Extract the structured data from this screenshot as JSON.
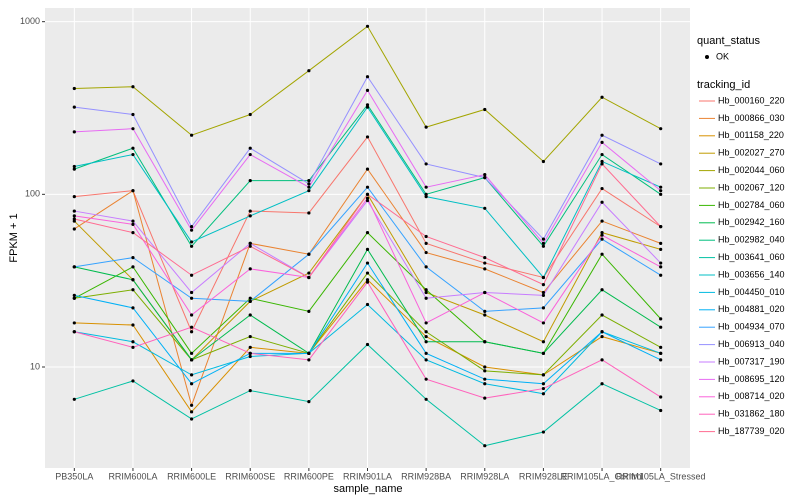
{
  "chart_data": {
    "type": "line",
    "x_label": "sample_name",
    "y_label": "FPKM + 1",
    "log_y": true,
    "grid": true,
    "legend_position": "right",
    "shape_legend": {
      "title": "quant_status",
      "labels": [
        "OK"
      ]
    },
    "legend_title": "tracking_id",
    "categories": [
      "PB350LA",
      "RRIM600LA",
      "RRIM600LE",
      "RRIM600SE",
      "RRIM600PE",
      "RRIM901LA",
      "RRIM928BA",
      "RRIM928LA",
      "RRIM928LE",
      "RRIM105LA_Control",
      "RRIM105LA_Stressed"
    ],
    "ylim": [
      2.6,
      1200
    ],
    "yticks": [
      10,
      100,
      1000
    ],
    "series": [
      {
        "name": "Hb_000160_220",
        "color": "#F8766D",
        "values": [
          97,
          105,
          16,
          80,
          78,
          215,
          52,
          40,
          33,
          108,
          65
        ]
      },
      {
        "name": "Hb_000866_030",
        "color": "#EA8331",
        "values": [
          63,
          105,
          6,
          52,
          45,
          140,
          46,
          37,
          27,
          70,
          52
        ]
      },
      {
        "name": "Hb_001158_220",
        "color": "#D89000",
        "values": [
          18,
          17.5,
          5.5,
          13,
          12,
          32,
          15,
          10,
          9,
          15,
          12
        ]
      },
      {
        "name": "Hb_002027_270",
        "color": "#C09B00",
        "values": [
          70,
          32,
          11,
          24,
          35,
          100,
          27,
          20,
          14,
          60,
          48
        ]
      },
      {
        "name": "Hb_002044_060",
        "color": "#A3A500",
        "values": [
          410,
          420,
          220,
          290,
          520,
          940,
          245,
          310,
          155,
          365,
          240
        ]
      },
      {
        "name": "Hb_002067_120",
        "color": "#7CAE00",
        "values": [
          25,
          28,
          11,
          15,
          12,
          35,
          16,
          9.5,
          9,
          20,
          13
        ]
      },
      {
        "name": "Hb_002784_060",
        "color": "#39B600",
        "values": [
          25,
          38,
          12,
          25,
          21,
          60,
          28,
          14,
          12,
          45,
          19
        ]
      },
      {
        "name": "Hb_002942_160",
        "color": "#00BB4E",
        "values": [
          38,
          32,
          11,
          20,
          12,
          48,
          14,
          14,
          12,
          28,
          17
        ]
      },
      {
        "name": "Hb_002982_040",
        "color": "#00BF7D",
        "values": [
          140,
          185,
          50,
          120,
          120,
          330,
          100,
          125,
          50,
          170,
          100
        ]
      },
      {
        "name": "Hb_003641_060",
        "color": "#00C1A3",
        "values": [
          6.5,
          8.3,
          5,
          7.3,
          6.3,
          13.5,
          6.5,
          3.5,
          4.2,
          8,
          5.6
        ]
      },
      {
        "name": "Hb_003656_140",
        "color": "#00BFC4",
        "values": [
          145,
          170,
          53,
          75,
          105,
          320,
          97,
          83,
          33,
          155,
          110
        ]
      },
      {
        "name": "Hb_004450_010",
        "color": "#00BAE0",
        "values": [
          16,
          14,
          9,
          11.5,
          12,
          23,
          11,
          8,
          7,
          16,
          12
        ]
      },
      {
        "name": "Hb_004881_020",
        "color": "#00B0F6",
        "values": [
          26,
          22,
          8,
          12,
          12,
          40,
          12,
          8.5,
          8,
          16,
          11
        ]
      },
      {
        "name": "Hb_004934_070",
        "color": "#35A2FF",
        "values": [
          38,
          43,
          25,
          24,
          45,
          110,
          38,
          21,
          22,
          55,
          34
        ]
      },
      {
        "name": "Hb_006913_040",
        "color": "#9590FF",
        "values": [
          320,
          290,
          65,
          185,
          115,
          480,
          150,
          125,
          55,
          220,
          150
        ]
      },
      {
        "name": "Hb_007317_190",
        "color": "#C77CFF",
        "values": [
          80,
          70,
          27,
          52,
          33,
          92,
          25,
          27,
          26,
          90,
          40
        ]
      },
      {
        "name": "Hb_008695_120",
        "color": "#E76BF3",
        "values": [
          230,
          240,
          62,
          170,
          110,
          400,
          110,
          130,
          52,
          200,
          105
        ]
      },
      {
        "name": "Hb_008714_020",
        "color": "#FA62DB",
        "values": [
          75,
          67,
          20,
          37,
          33,
          95,
          18,
          27,
          18,
          58,
          38
        ]
      },
      {
        "name": "Hb_031862_180",
        "color": "#FF62BC",
        "values": [
          16,
          13,
          17,
          12,
          11,
          31,
          8.5,
          6.6,
          7.5,
          11,
          6.7
        ]
      },
      {
        "name": "Hb_187739_020",
        "color": "#FF6C91",
        "values": [
          72,
          60,
          34,
          50,
          33,
          100,
          57,
          43,
          30,
          150,
          65
        ]
      }
    ]
  }
}
